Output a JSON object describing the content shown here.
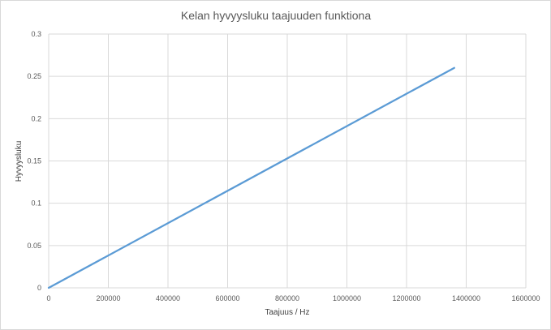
{
  "chart_data": {
    "type": "line",
    "title": "Kelan hyvyysluku taajuuden funktiona",
    "xlabel": "Taajuus / Hz",
    "ylabel": "Hyvyysluku",
    "xlim": [
      0,
      1600000
    ],
    "ylim": [
      0,
      0.3
    ],
    "x_ticks": [
      "0",
      "200000",
      "400000",
      "600000",
      "800000",
      "1000000",
      "1200000",
      "1400000",
      "1600000"
    ],
    "y_ticks": [
      "0",
      "0.05",
      "0.1",
      "0.15",
      "0.2",
      "0.25",
      "0.3"
    ],
    "grid": true,
    "legend": "none",
    "series": [
      {
        "color": "#5b9bd5",
        "x": [
          0,
          1360000
        ],
        "y": [
          0,
          0.26
        ]
      }
    ]
  }
}
